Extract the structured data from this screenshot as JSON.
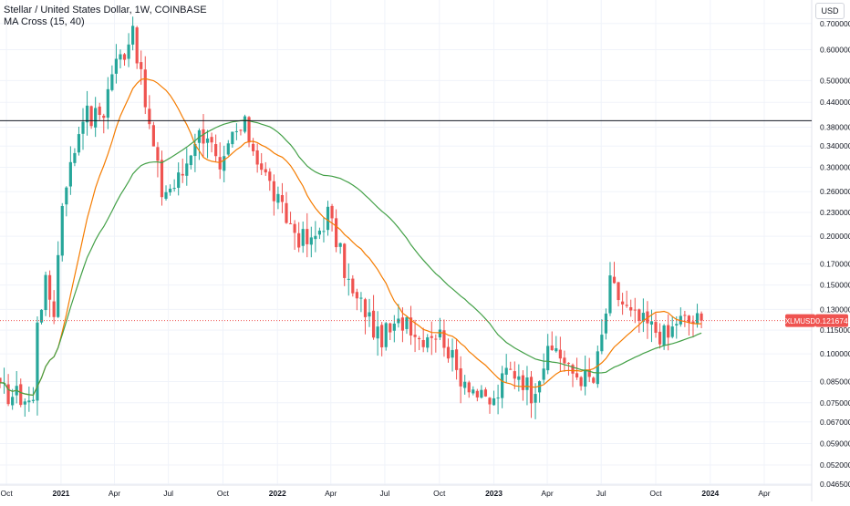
{
  "chart_title": "Stellar / United States Dollar, 1W, COINBASE",
  "indicator_label": "MA Cross (15, 40)",
  "currency_label": "USD",
  "colors": {
    "up": "#26a69a",
    "down": "#ef5350",
    "ma_fast": "#f57c00",
    "ma_slow": "#43a047",
    "hline": "#131722",
    "price_line": "#ef5350",
    "axis_text": "#131722"
  },
  "chart_data": {
    "type": "candlestick",
    "title": "Stellar / United States Dollar, 1W, COINBASE",
    "y_scale": "log",
    "ylim": [
      0.0462,
      0.77
    ],
    "y_ticks": [
      "0.700000",
      "0.600000",
      "0.500000",
      "0.440000",
      "0.380000",
      "0.340000",
      "0.300000",
      "0.260000",
      "0.230000",
      "0.200000",
      "0.170000",
      "0.150000",
      "0.130000",
      "0.115000",
      "0.100000",
      "0.085000",
      "0.075000",
      "0.067000",
      "0.059000",
      "0.052000",
      "0.046500"
    ],
    "x_ticks": [
      "Oct",
      "2021",
      "Apr",
      "Jul",
      "Oct",
      "2022",
      "Apr",
      "Jul",
      "Oct",
      "2023",
      "Apr",
      "Jul",
      "Oct",
      "2024",
      "Apr"
    ],
    "x_range_dates": [
      "2020-09-20",
      "2024-06-20"
    ],
    "horizontal_line": 0.395,
    "last_price": {
      "symbol": "XLMUSD",
      "value": "0.121674"
    },
    "anchors": [
      [
        "2020-09-20",
        0.08
      ],
      [
        "2020-10-25",
        0.078
      ],
      [
        "2020-11-15",
        0.075
      ],
      [
        "2020-11-22",
        0.125
      ],
      [
        "2020-12-06",
        0.15
      ],
      [
        "2020-12-20",
        0.13
      ],
      [
        "2021-01-05",
        0.27
      ],
      [
        "2021-01-17",
        0.3
      ],
      [
        "2021-02-07",
        0.42
      ],
      [
        "2021-02-21",
        0.4
      ],
      [
        "2021-03-14",
        0.42
      ],
      [
        "2021-03-28",
        0.53
      ],
      [
        "2021-04-18",
        0.6
      ],
      [
        "2021-05-02",
        0.7
      ],
      [
        "2021-05-16",
        0.5
      ],
      [
        "2021-05-30",
        0.38
      ],
      [
        "2021-06-20",
        0.26
      ],
      [
        "2021-07-11",
        0.27
      ],
      [
        "2021-07-25",
        0.29
      ],
      [
        "2021-08-15",
        0.36
      ],
      [
        "2021-09-05",
        0.37
      ],
      [
        "2021-09-26",
        0.28
      ],
      [
        "2021-10-17",
        0.36
      ],
      [
        "2021-11-07",
        0.38
      ],
      [
        "2021-11-28",
        0.32
      ],
      [
        "2021-12-19",
        0.27
      ],
      [
        "2022-01-09",
        0.23
      ],
      [
        "2022-02-06",
        0.2
      ],
      [
        "2022-02-27",
        0.19
      ],
      [
        "2022-03-27",
        0.23
      ],
      [
        "2022-04-17",
        0.18
      ],
      [
        "2022-05-08",
        0.14
      ],
      [
        "2022-05-29",
        0.13
      ],
      [
        "2022-06-19",
        0.11
      ],
      [
        "2022-07-17",
        0.115
      ],
      [
        "2022-08-07",
        0.125
      ],
      [
        "2022-08-28",
        0.11
      ],
      [
        "2022-09-18",
        0.115
      ],
      [
        "2022-10-09",
        0.11
      ],
      [
        "2022-10-30",
        0.09
      ],
      [
        "2022-11-20",
        0.085
      ],
      [
        "2022-12-11",
        0.076
      ],
      [
        "2023-01-01",
        0.075
      ],
      [
        "2023-01-22",
        0.09
      ],
      [
        "2023-02-12",
        0.09
      ],
      [
        "2023-03-05",
        0.08
      ],
      [
        "2023-03-26",
        0.095
      ],
      [
        "2023-04-16",
        0.105
      ],
      [
        "2023-05-07",
        0.09
      ],
      [
        "2023-05-28",
        0.088
      ],
      [
        "2023-06-18",
        0.085
      ],
      [
        "2023-07-02",
        0.11
      ],
      [
        "2023-07-16",
        0.15
      ],
      [
        "2023-07-30",
        0.14
      ],
      [
        "2023-08-20",
        0.125
      ],
      [
        "2023-09-10",
        0.12
      ],
      [
        "2023-10-01",
        0.115
      ],
      [
        "2023-10-22",
        0.11
      ],
      [
        "2023-11-05",
        0.122
      ],
      [
        "2023-11-26",
        0.121
      ],
      [
        "2023-12-17",
        0.1217
      ]
    ]
  }
}
